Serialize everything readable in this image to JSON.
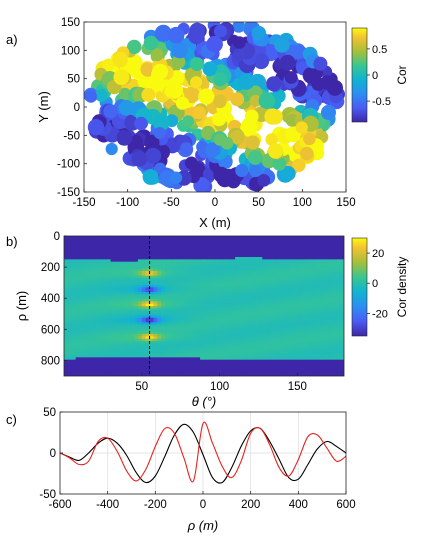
{
  "chart_data": [
    {
      "panel_label": "a)",
      "type": "scatter",
      "xlabel": "X (m)",
      "ylabel": "Y (m)",
      "xlim": [
        -150,
        150
      ],
      "ylim": [
        -150,
        150
      ],
      "xticks": [
        -150,
        -100,
        -50,
        0,
        50,
        100,
        150
      ],
      "yticks": [
        -150,
        -100,
        -50,
        0,
        50,
        100,
        150
      ],
      "colorbar": {
        "label": "Cor",
        "range": [
          -0.9,
          0.9
        ],
        "ticks": [
          0.5,
          0,
          -0.5
        ],
        "tick_labels": [
          "0.5",
          "0",
          "-0.5"
        ]
      },
      "description_of_values": "circular patch of points, color = cos(2*pi*(X*cos55 + Y*sin55)/200)",
      "field": {
        "theta_deg": 55,
        "wavelength_m": 200,
        "radius_m": 145
      }
    },
    {
      "panel_label": "b)",
      "type": "heatmap",
      "xlabel": "θ (°)",
      "ylabel": "ρ (m)",
      "xlim": [
        0,
        180
      ],
      "ylim": [
        0,
        900
      ],
      "xticks": [
        50,
        100,
        150
      ],
      "yticks": [
        0,
        200,
        400,
        600,
        800
      ],
      "colorbar": {
        "label": "Cor density",
        "range": [
          -35,
          30
        ],
        "ticks": [
          20,
          0,
          -20
        ],
        "tick_labels": [
          "20",
          "0",
          "-20"
        ]
      },
      "marker_line_theta": 55,
      "peaks": [
        {
          "rho": 240,
          "value": 22
        },
        {
          "rho": 345,
          "value": -28
        },
        {
          "rho": 440,
          "value": 26
        },
        {
          "rho": 540,
          "value": -30
        },
        {
          "rho": 650,
          "value": 24
        }
      ],
      "valid_rho_range": [
        150,
        790
      ]
    },
    {
      "panel_label": "c)",
      "type": "line",
      "xlabel": "ρ (m)",
      "ylabel": "",
      "xlim": [
        -600,
        600
      ],
      "ylim": [
        -50,
        50
      ],
      "xticks": [
        -600,
        -400,
        -200,
        0,
        200,
        400,
        600
      ],
      "yticks": [
        -50,
        0,
        50
      ],
      "grid": true,
      "series": [
        {
          "color": "#000000",
          "x": [
            -600,
            -560,
            -520,
            -480,
            -440,
            -400,
            -360,
            -320,
            -280,
            -240,
            -200,
            -160,
            -120,
            -80,
            -40,
            0,
            40,
            80,
            120,
            160,
            200,
            240,
            280,
            320,
            360,
            400,
            440,
            480,
            520,
            560,
            600
          ],
          "y": [
            0,
            -5,
            -9,
            0,
            12,
            18,
            12,
            -3,
            -24,
            -36,
            -28,
            -4,
            22,
            35,
            25,
            -2,
            -30,
            -36,
            -18,
            8,
            27,
            30,
            14,
            -8,
            -30,
            -32,
            -14,
            5,
            14,
            8,
            0
          ]
        },
        {
          "color": "#e8231e",
          "x": [
            -600,
            -560,
            -520,
            -480,
            -440,
            -400,
            -360,
            -320,
            -280,
            -240,
            -200,
            -160,
            -120,
            -80,
            -40,
            0,
            40,
            80,
            120,
            160,
            200,
            240,
            280,
            320,
            360,
            400,
            440,
            480,
            520,
            560,
            600
          ],
          "y": [
            0,
            -6,
            -14,
            -10,
            14,
            18,
            2,
            -22,
            -34,
            -20,
            8,
            30,
            24,
            -6,
            -34,
            36,
            12,
            -16,
            -30,
            -10,
            24,
            30,
            10,
            -18,
            -28,
            -8,
            20,
            22,
            6,
            -10,
            -4
          ]
        }
      ]
    }
  ]
}
